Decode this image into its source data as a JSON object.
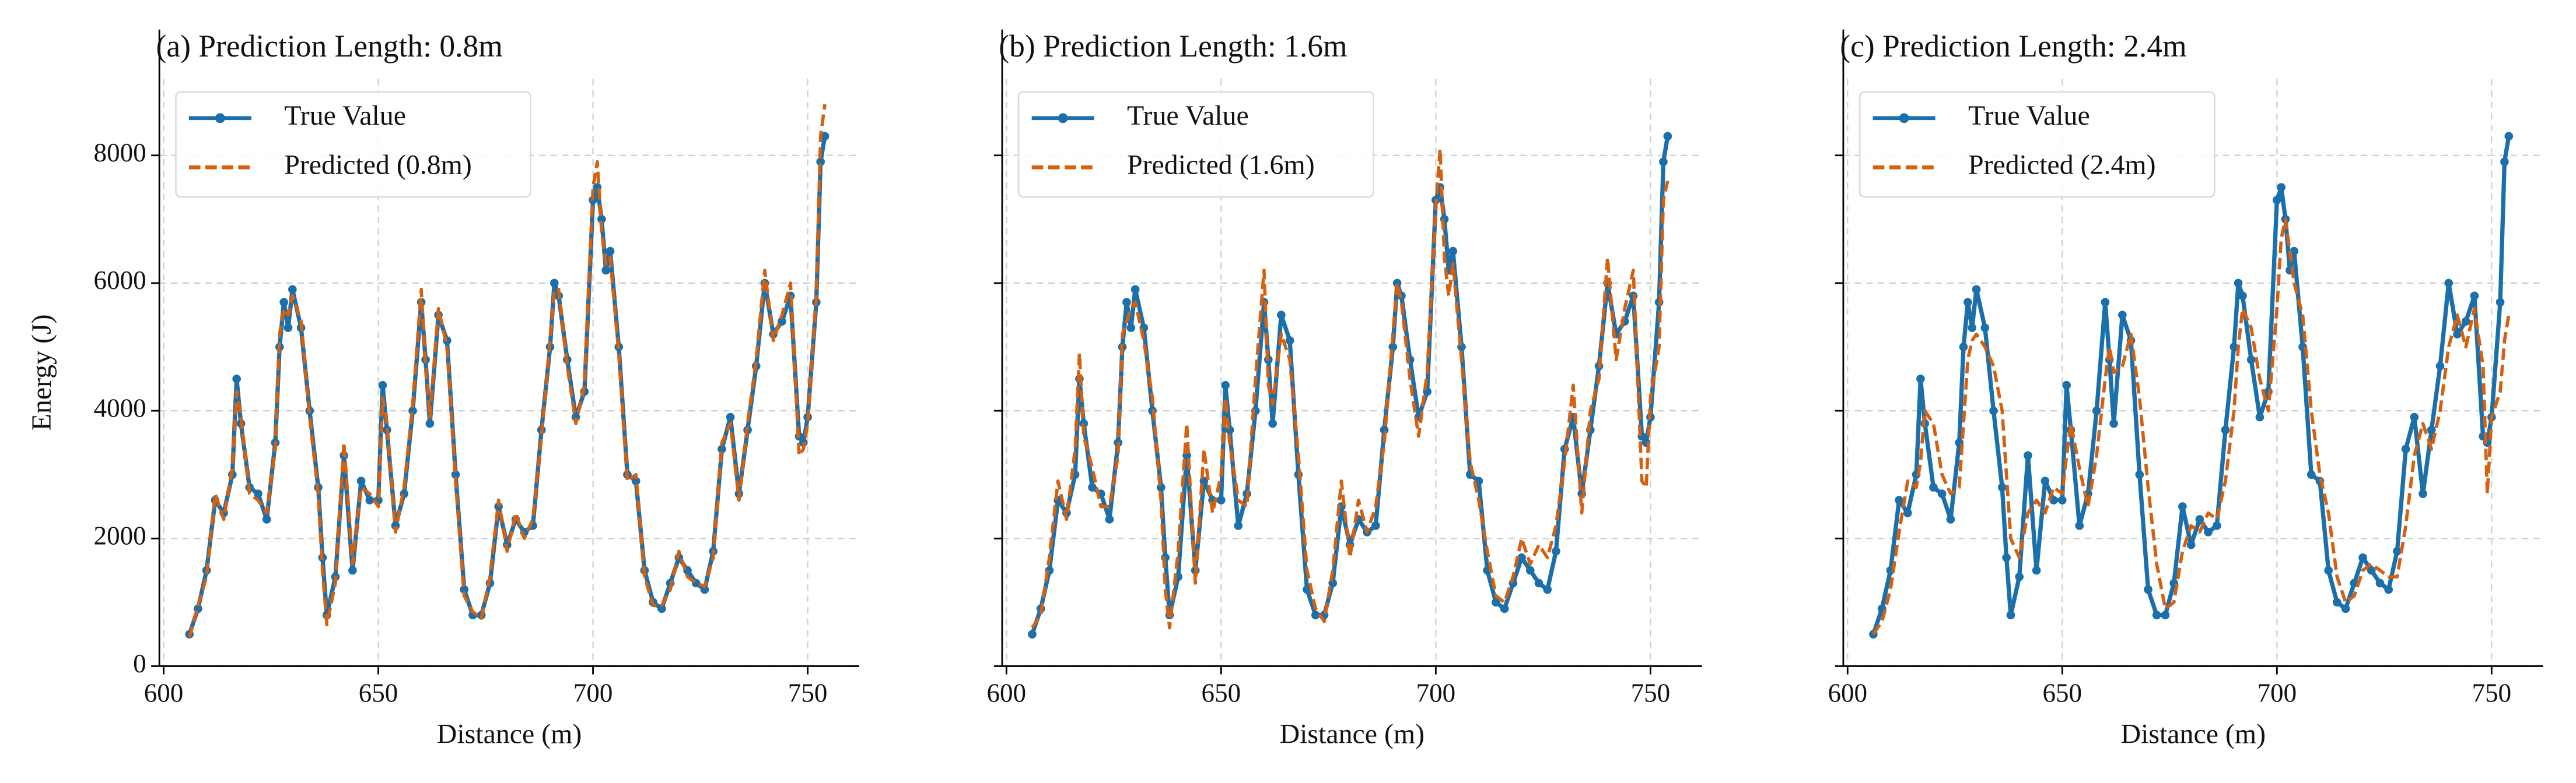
{
  "chart_data": [
    {
      "type": "line",
      "title": "(a) Prediction Length: 0.8m",
      "xlabel": "Distance (m)",
      "ylabel": "Energy (J)",
      "xlim": [
        599,
        762
      ],
      "ylim": [
        0,
        9200
      ],
      "xticks": [
        600,
        650,
        700,
        750
      ],
      "yticks": [
        0,
        2000,
        4000,
        6000,
        8000
      ],
      "show_ytick_labels": true,
      "grid": true,
      "legend": "upper left",
      "x": [
        606,
        608,
        610,
        612,
        614,
        616,
        617,
        618,
        620,
        622,
        624,
        626,
        627,
        628,
        629,
        630,
        632,
        634,
        636,
        637,
        638,
        640,
        642,
        644,
        646,
        648,
        650,
        651,
        652,
        654,
        656,
        658,
        660,
        661,
        662,
        664,
        666,
        668,
        670,
        672,
        674,
        676,
        678,
        680,
        682,
        684,
        686,
        688,
        690,
        691,
        692,
        694,
        696,
        698,
        700,
        701,
        702,
        703,
        704,
        706,
        708,
        710,
        712,
        714,
        716,
        718,
        720,
        722,
        724,
        726,
        728,
        730,
        732,
        734,
        736,
        738,
        740,
        742,
        744,
        746,
        748,
        749,
        750,
        752,
        753,
        754
      ],
      "series": [
        {
          "name": "True Value",
          "color": "#1b6fab",
          "linestyle": "solid",
          "markers": true,
          "values": [
            500,
            900,
            1500,
            2600,
            2400,
            3000,
            4500,
            3800,
            2800,
            2700,
            2300,
            3500,
            5000,
            5700,
            5300,
            5900,
            5300,
            4000,
            2800,
            1700,
            800,
            1400,
            3300,
            1500,
            2900,
            2600,
            2600,
            4400,
            3700,
            2200,
            2700,
            4000,
            5700,
            4800,
            3800,
            5500,
            5100,
            3000,
            1200,
            800,
            800,
            1300,
            2500,
            1900,
            2300,
            2100,
            2200,
            3700,
            5000,
            6000,
            5800,
            4800,
            3900,
            4300,
            7300,
            7500,
            7000,
            6200,
            6500,
            5000,
            3000,
            2900,
            1500,
            1000,
            900,
            1300,
            1700,
            1500,
            1300,
            1200,
            1800,
            3400,
            3900,
            2700,
            3700,
            4700,
            6000,
            5200,
            5400,
            5800,
            3600,
            3500,
            3900,
            5700,
            7900,
            8300
          ]
        },
        {
          "name": "Predicted (0.8m)",
          "color": "#d5600f",
          "linestyle": "dashed",
          "markers": false,
          "values": [
            450,
            950,
            1400,
            2700,
            2300,
            3100,
            4300,
            3900,
            2700,
            2600,
            2400,
            3400,
            5200,
            5600,
            5500,
            5800,
            5400,
            3900,
            2700,
            1500,
            650,
            1300,
            3500,
            1600,
            2800,
            2700,
            2500,
            4200,
            3800,
            2100,
            2800,
            4100,
            5900,
            4700,
            3900,
            5600,
            5000,
            2900,
            1100,
            850,
            750,
            1400,
            2600,
            1800,
            2400,
            2000,
            2300,
            3600,
            5100,
            5900,
            5900,
            4700,
            3800,
            4400,
            7500,
            7900,
            6800,
            6300,
            6400,
            4900,
            2900,
            3000,
            1400,
            950,
            950,
            1200,
            1800,
            1400,
            1300,
            1250,
            1700,
            3500,
            3800,
            2600,
            3800,
            4800,
            6200,
            5100,
            5500,
            6000,
            3300,
            3400,
            3800,
            5800,
            8300,
            8800
          ]
        }
      ]
    },
    {
      "type": "line",
      "title": "(b) Prediction Length: 1.6m",
      "xlabel": "Distance (m)",
      "xlim": [
        599,
        762
      ],
      "ylim": [
        0,
        9200
      ],
      "xticks": [
        600,
        650,
        700,
        750
      ],
      "yticks": [
        0,
        2000,
        4000,
        6000,
        8000
      ],
      "show_ytick_labels": false,
      "grid": true,
      "legend": "upper left",
      "x": [
        606,
        608,
        610,
        612,
        614,
        616,
        617,
        618,
        620,
        622,
        624,
        626,
        627,
        628,
        629,
        630,
        632,
        634,
        636,
        637,
        638,
        640,
        642,
        644,
        646,
        648,
        650,
        651,
        652,
        654,
        656,
        658,
        660,
        661,
        662,
        664,
        666,
        668,
        670,
        672,
        674,
        676,
        678,
        680,
        682,
        684,
        686,
        688,
        690,
        691,
        692,
        694,
        696,
        698,
        700,
        701,
        702,
        703,
        704,
        706,
        708,
        710,
        712,
        714,
        716,
        718,
        720,
        722,
        724,
        726,
        728,
        730,
        732,
        734,
        736,
        738,
        740,
        742,
        744,
        746,
        748,
        749,
        750,
        752,
        753,
        754
      ],
      "series": [
        {
          "name": "True Value",
          "color": "#1b6fab",
          "linestyle": "solid",
          "markers": true,
          "values": [
            500,
            900,
            1500,
            2600,
            2400,
            3000,
            4500,
            3800,
            2800,
            2700,
            2300,
            3500,
            5000,
            5700,
            5300,
            5900,
            5300,
            4000,
            2800,
            1700,
            800,
            1400,
            3300,
            1500,
            2900,
            2600,
            2600,
            4400,
            3700,
            2200,
            2700,
            4000,
            5700,
            4800,
            3800,
            5500,
            5100,
            3000,
            1200,
            800,
            800,
            1300,
            2500,
            1900,
            2300,
            2100,
            2200,
            3700,
            5000,
            6000,
            5800,
            4800,
            3900,
            4300,
            7300,
            7500,
            7000,
            6200,
            6500,
            5000,
            3000,
            2900,
            1500,
            1000,
            900,
            1300,
            1700,
            1500,
            1300,
            1200,
            1800,
            3400,
            3900,
            2700,
            3700,
            4700,
            6000,
            5200,
            5400,
            5800,
            3600,
            3500,
            3900,
            5700,
            7900,
            8300
          ]
        },
        {
          "name": "Predicted (1.6m)",
          "color": "#d5600f",
          "linestyle": "dashed",
          "markers": false,
          "values": [
            600,
            800,
            1700,
            2900,
            2300,
            3400,
            4900,
            3600,
            3100,
            2500,
            2500,
            3300,
            5200,
            5400,
            5600,
            5700,
            5100,
            4200,
            2600,
            1200,
            600,
            1800,
            3800,
            1300,
            3400,
            2400,
            3000,
            4200,
            3500,
            2600,
            2500,
            4500,
            6200,
            4400,
            4100,
            5200,
            4800,
            3300,
            1500,
            900,
            700,
            1500,
            2900,
            1700,
            2600,
            2100,
            2500,
            3500,
            5200,
            6000,
            5700,
            4500,
            3600,
            4600,
            7200,
            8100,
            6400,
            5800,
            6300,
            4800,
            3200,
            2600,
            1800,
            1100,
            1000,
            1400,
            2000,
            1600,
            1900,
            1700,
            2200,
            3200,
            4400,
            2400,
            4000,
            4500,
            6400,
            4800,
            5600,
            6200,
            2900,
            2800,
            4200,
            5000,
            7300,
            7600
          ]
        }
      ]
    },
    {
      "type": "line",
      "title": "(c) Prediction Length: 2.4m",
      "xlabel": "Distance (m)",
      "xlim": [
        599,
        762
      ],
      "ylim": [
        0,
        9200
      ],
      "xticks": [
        600,
        650,
        700,
        750
      ],
      "yticks": [
        0,
        2000,
        4000,
        6000,
        8000
      ],
      "show_ytick_labels": false,
      "grid": true,
      "legend": "upper left",
      "x": [
        606,
        608,
        610,
        612,
        614,
        616,
        617,
        618,
        620,
        622,
        624,
        626,
        627,
        628,
        629,
        630,
        632,
        634,
        636,
        637,
        638,
        640,
        642,
        644,
        646,
        648,
        650,
        651,
        652,
        654,
        656,
        658,
        660,
        661,
        662,
        664,
        666,
        668,
        670,
        672,
        674,
        676,
        678,
        680,
        682,
        684,
        686,
        688,
        690,
        691,
        692,
        694,
        696,
        698,
        700,
        701,
        702,
        703,
        704,
        706,
        708,
        710,
        712,
        714,
        716,
        718,
        720,
        722,
        724,
        726,
        728,
        730,
        732,
        734,
        736,
        738,
        740,
        742,
        744,
        746,
        748,
        749,
        750,
        752,
        753,
        754
      ],
      "series": [
        {
          "name": "True Value",
          "color": "#1b6fab",
          "linestyle": "solid",
          "markers": true,
          "values": [
            500,
            900,
            1500,
            2600,
            2400,
            3000,
            4500,
            3800,
            2800,
            2700,
            2300,
            3500,
            5000,
            5700,
            5300,
            5900,
            5300,
            4000,
            2800,
            1700,
            800,
            1400,
            3300,
            1500,
            2900,
            2600,
            2600,
            4400,
            3700,
            2200,
            2700,
            4000,
            5700,
            4800,
            3800,
            5500,
            5100,
            3000,
            1200,
            800,
            800,
            1300,
            2500,
            1900,
            2300,
            2100,
            2200,
            3700,
            5000,
            6000,
            5800,
            4800,
            3900,
            4300,
            7300,
            7500,
            7000,
            6200,
            6500,
            5000,
            3000,
            2900,
            1500,
            1000,
            900,
            1300,
            1700,
            1500,
            1300,
            1200,
            1800,
            3400,
            3900,
            2700,
            3700,
            4700,
            6000,
            5200,
            5400,
            5800,
            3600,
            3500,
            3900,
            5700,
            7900,
            8300
          ]
        },
        {
          "name": "Predicted (2.4m)",
          "color": "#d5600f",
          "linestyle": "dashed",
          "markers": false,
          "values": [
            500,
            700,
            1200,
            2100,
            2900,
            2800,
            3200,
            4000,
            3800,
            3000,
            2700,
            2800,
            3800,
            4800,
            5100,
            5200,
            5000,
            4700,
            4000,
            3000,
            2000,
            1700,
            2400,
            2600,
            2400,
            2800,
            2700,
            3300,
            3800,
            3100,
            2500,
            3300,
            4500,
            5000,
            4600,
            4700,
            5200,
            4200,
            2800,
            1600,
            900,
            1000,
            1800,
            2200,
            2100,
            2400,
            2300,
            2900,
            4000,
            5000,
            5600,
            5300,
            4500,
            4000,
            5600,
            6700,
            7000,
            6500,
            6000,
            5500,
            4000,
            3000,
            2400,
            1400,
            1000,
            1100,
            1500,
            1600,
            1500,
            1400,
            1400,
            2200,
            3300,
            3800,
            3400,
            4000,
            5000,
            5500,
            5000,
            5600,
            4700,
            2700,
            3900,
            4300,
            5100,
            5500
          ]
        }
      ]
    }
  ]
}
